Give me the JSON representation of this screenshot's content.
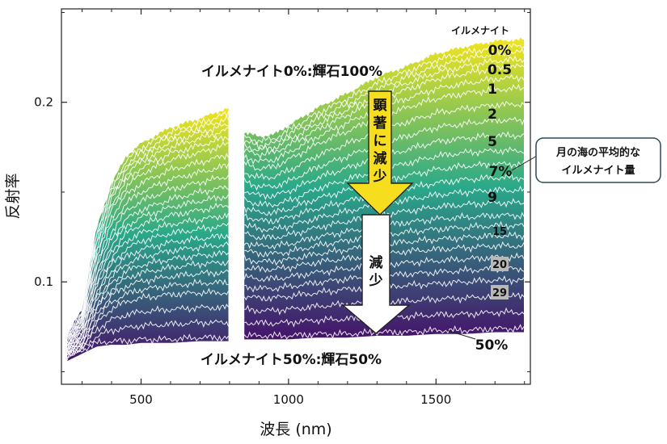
{
  "chart_data": {
    "type": "area",
    "title": "",
    "xlabel": "波長 (nm)",
    "ylabel": "反射率",
    "xlim": [
      230,
      1820
    ],
    "ylim": [
      0.043,
      0.252
    ],
    "xticks": [
      500,
      1000,
      1500
    ],
    "yticks": [
      0.1,
      0.2
    ],
    "gap_nm": [
      798,
      850
    ],
    "key_x": [
      250,
      300,
      350,
      400,
      450,
      500,
      600,
      700,
      800,
      850,
      900,
      950,
      1000,
      1100,
      1200,
      1300,
      1400,
      1500,
      1600,
      1700,
      1800
    ],
    "series": [
      {
        "name": "0%",
        "values": [
          0.07,
          0.085,
          0.13,
          0.155,
          0.17,
          0.177,
          0.186,
          0.191,
          0.197,
          0.183,
          0.181,
          0.182,
          0.187,
          0.197,
          0.205,
          0.214,
          0.22,
          0.227,
          0.231,
          0.234,
          0.235
        ]
      },
      {
        "name": "0.5",
        "values": [
          0.069,
          0.083,
          0.126,
          0.151,
          0.165,
          0.172,
          0.181,
          0.186,
          0.191,
          0.178,
          0.176,
          0.177,
          0.182,
          0.191,
          0.199,
          0.207,
          0.214,
          0.22,
          0.224,
          0.227,
          0.228
        ]
      },
      {
        "name": "1",
        "values": [
          0.068,
          0.081,
          0.122,
          0.146,
          0.16,
          0.167,
          0.175,
          0.18,
          0.185,
          0.173,
          0.171,
          0.172,
          0.176,
          0.185,
          0.193,
          0.201,
          0.207,
          0.213,
          0.216,
          0.219,
          0.22
        ]
      },
      {
        "name": "2",
        "values": [
          0.067,
          0.079,
          0.117,
          0.14,
          0.153,
          0.16,
          0.168,
          0.172,
          0.177,
          0.166,
          0.163,
          0.164,
          0.168,
          0.177,
          0.184,
          0.191,
          0.197,
          0.202,
          0.205,
          0.207,
          0.208
        ]
      },
      {
        "name": "5",
        "values": [
          0.066,
          0.077,
          0.111,
          0.132,
          0.144,
          0.15,
          0.157,
          0.161,
          0.165,
          0.156,
          0.153,
          0.153,
          0.156,
          0.164,
          0.17,
          0.176,
          0.181,
          0.186,
          0.188,
          0.19,
          0.19
        ]
      },
      {
        "name": "7%",
        "values": [
          0.065,
          0.075,
          0.105,
          0.124,
          0.135,
          0.14,
          0.146,
          0.15,
          0.153,
          0.146,
          0.143,
          0.143,
          0.145,
          0.152,
          0.157,
          0.162,
          0.166,
          0.17,
          0.172,
          0.173,
          0.173
        ]
      },
      {
        "name": "9",
        "values": [
          0.064,
          0.073,
          0.1,
          0.117,
          0.127,
          0.132,
          0.137,
          0.14,
          0.143,
          0.137,
          0.134,
          0.134,
          0.136,
          0.141,
          0.145,
          0.149,
          0.152,
          0.155,
          0.157,
          0.158,
          0.158
        ]
      },
      {
        "name": "15",
        "values": [
          0.062,
          0.07,
          0.092,
          0.106,
          0.114,
          0.118,
          0.122,
          0.124,
          0.126,
          0.122,
          0.12,
          0.12,
          0.121,
          0.125,
          0.128,
          0.131,
          0.133,
          0.135,
          0.136,
          0.137,
          0.137
        ]
      },
      {
        "name": "20",
        "values": [
          0.061,
          0.067,
          0.085,
          0.096,
          0.102,
          0.105,
          0.108,
          0.11,
          0.111,
          0.108,
          0.107,
          0.107,
          0.108,
          0.111,
          0.113,
          0.115,
          0.117,
          0.118,
          0.119,
          0.12,
          0.12
        ]
      },
      {
        "name": "29",
        "values": [
          0.06,
          0.064,
          0.077,
          0.085,
          0.089,
          0.091,
          0.093,
          0.094,
          0.094,
          0.092,
          0.091,
          0.091,
          0.092,
          0.094,
          0.096,
          0.097,
          0.098,
          0.099,
          0.1,
          0.101,
          0.101
        ]
      },
      {
        "name": "50%",
        "values": [
          0.058,
          0.062,
          0.066,
          0.067,
          0.067,
          0.068,
          0.068,
          0.069,
          0.069,
          0.07,
          0.07,
          0.07,
          0.07,
          0.071,
          0.071,
          0.072,
          0.072,
          0.073,
          0.073,
          0.074,
          0.074
        ]
      }
    ],
    "legend_title": "イルメナイト",
    "annotations": {
      "top_label": "イルメナイト0%:輝石100%",
      "bottom_label": "イルメナイト50%:輝石50%",
      "arrow_upper_text": "顕著に減少",
      "arrow_lower_text": "減少",
      "callout_line1": "月の海の平均的な",
      "callout_line2": "イルメナイト量"
    },
    "colors": {
      "fill_top": "#f4e51c",
      "fill_mid": "#29a88a",
      "fill_bottom": "#46126a",
      "curve_line": "#ffffff",
      "arrow_upper_fill": "#f6dd1e",
      "arrow_lower_fill": "#ffffff",
      "label_box": "#b8b8b8"
    }
  }
}
